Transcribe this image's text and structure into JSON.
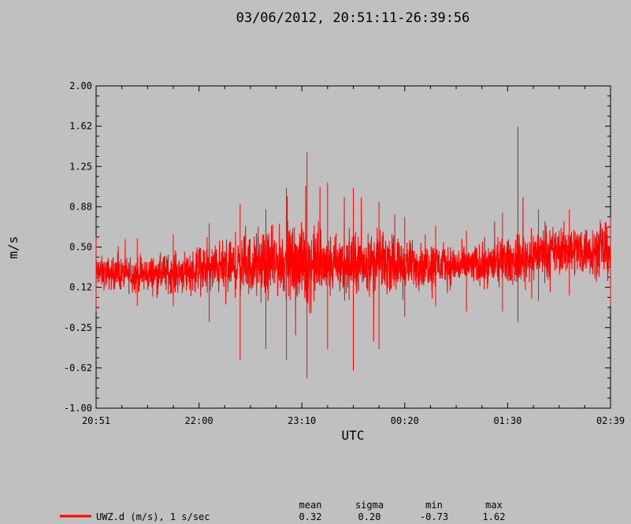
{
  "chart_data": {
    "type": "line",
    "title": "03/06/2012, 20:51:11-26:39:56",
    "xlabel": "UTC",
    "ylabel": "m/s",
    "ylim": [
      -1.0,
      2.0
    ],
    "x_ticks": [
      "20:51",
      "22:00",
      "23:10",
      "00:20",
      "01:30",
      "02:39"
    ],
    "y_ticks": [
      "2.00",
      "1.62",
      "1.25",
      "0.88",
      "0.50",
      "0.12",
      "-0.25",
      "-0.62",
      "-1.00"
    ],
    "series": [
      {
        "name": "UWZ.d (m/s), 1 s/sec",
        "color": "#ff0000",
        "envelope": [
          {
            "t": 0.0,
            "mid": 0.26,
            "amp": 0.13,
            "spike_hi": 0.6,
            "spike_lo": -0.1
          },
          {
            "t": 0.08,
            "mid": 0.24,
            "amp": 0.14,
            "spike_hi": 0.58,
            "spike_lo": -0.05
          },
          {
            "t": 0.15,
            "mid": 0.26,
            "amp": 0.16,
            "spike_hi": 0.62,
            "spike_lo": -0.05
          },
          {
            "t": 0.22,
            "mid": 0.3,
            "amp": 0.2,
            "spike_hi": 0.72,
            "spike_lo": -0.2
          },
          {
            "t": 0.28,
            "mid": 0.32,
            "amp": 0.24,
            "spike_hi": 0.9,
            "spike_lo": -0.55
          },
          {
            "t": 0.33,
            "mid": 0.34,
            "amp": 0.26,
            "spike_hi": 0.85,
            "spike_lo": -0.45
          },
          {
            "t": 0.37,
            "mid": 0.36,
            "amp": 0.28,
            "spike_hi": 1.05,
            "spike_lo": -0.55
          },
          {
            "t": 0.41,
            "mid": 0.34,
            "amp": 0.34,
            "spike_hi": 1.38,
            "spike_lo": -0.72
          },
          {
            "t": 0.45,
            "mid": 0.32,
            "amp": 0.26,
            "spike_hi": 1.1,
            "spike_lo": -0.45
          },
          {
            "t": 0.5,
            "mid": 0.34,
            "amp": 0.26,
            "spike_hi": 1.05,
            "spike_lo": -0.65
          },
          {
            "t": 0.55,
            "mid": 0.36,
            "amp": 0.24,
            "spike_hi": 0.92,
            "spike_lo": -0.45
          },
          {
            "t": 0.6,
            "mid": 0.34,
            "amp": 0.2,
            "spike_hi": 0.78,
            "spike_lo": -0.15
          },
          {
            "t": 0.66,
            "mid": 0.34,
            "amp": 0.18,
            "spike_hi": 0.7,
            "spike_lo": -0.05
          },
          {
            "t": 0.72,
            "mid": 0.32,
            "amp": 0.16,
            "spike_hi": 0.65,
            "spike_lo": -0.1
          },
          {
            "t": 0.79,
            "mid": 0.36,
            "amp": 0.18,
            "spike_hi": 0.82,
            "spike_lo": -0.1
          },
          {
            "t": 0.82,
            "mid": 0.38,
            "amp": 0.2,
            "spike_hi": 1.62,
            "spike_lo": -0.2
          },
          {
            "t": 0.86,
            "mid": 0.44,
            "amp": 0.2,
            "spike_hi": 0.85,
            "spike_lo": 0.0
          },
          {
            "t": 0.92,
            "mid": 0.48,
            "amp": 0.2,
            "spike_hi": 0.85,
            "spike_lo": 0.05
          },
          {
            "t": 1.0,
            "mid": 0.46,
            "amp": 0.22,
            "spike_hi": 0.78,
            "spike_lo": -0.05
          }
        ]
      }
    ],
    "grid": false,
    "legend_position": "bottom-left"
  },
  "stats": {
    "headers": {
      "mean": "mean",
      "sigma": "sigma",
      "min": "min",
      "max": "max"
    },
    "values": {
      "mean": "0.32",
      "sigma": "0.20",
      "min": "-0.73",
      "max": "1.62"
    }
  }
}
